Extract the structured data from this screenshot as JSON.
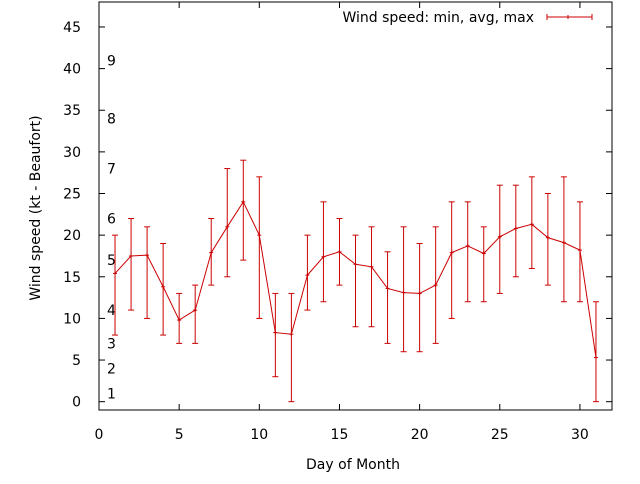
{
  "chart_data": {
    "type": "line",
    "xlabel": "Day of Month",
    "ylabel": "Wind speed (kt - Beaufort)",
    "xlim": [
      0,
      32
    ],
    "ylim": [
      -1,
      48
    ],
    "x_ticks": [
      0,
      5,
      10,
      15,
      20,
      25,
      30
    ],
    "y_ticks": [
      0,
      5,
      10,
      15,
      20,
      25,
      30,
      35,
      40,
      45
    ],
    "grid": false,
    "legend_position": "top-right",
    "beaufort_labels": [
      {
        "label": "1",
        "value": 1
      },
      {
        "label": "2",
        "value": 4
      },
      {
        "label": "3",
        "value": 7
      },
      {
        "label": "4",
        "value": 11
      },
      {
        "label": "5",
        "value": 17
      },
      {
        "label": "6",
        "value": 22
      },
      {
        "label": "7",
        "value": 28
      },
      {
        "label": "8",
        "value": 34
      },
      {
        "label": "9",
        "value": 41
      }
    ],
    "series": [
      {
        "name": "Wind speed: min, avg, max",
        "color": "#cc0000",
        "points": [
          {
            "x": 1,
            "min": 8,
            "avg": 15.4,
            "max": 20
          },
          {
            "x": 2,
            "min": 11,
            "avg": 17.5,
            "max": 22
          },
          {
            "x": 3,
            "min": 10,
            "avg": 17.6,
            "max": 21
          },
          {
            "x": 4,
            "min": 8,
            "avg": 13.8,
            "max": 19
          },
          {
            "x": 5,
            "min": 7,
            "avg": 9.8,
            "max": 13
          },
          {
            "x": 6,
            "min": 7,
            "avg": 11,
            "max": 14
          },
          {
            "x": 7,
            "min": 14,
            "avg": 17.9,
            "max": 22
          },
          {
            "x": 8,
            "min": 15,
            "avg": 21,
            "max": 28
          },
          {
            "x": 9,
            "min": 17,
            "avg": 24,
            "max": 29
          },
          {
            "x": 10,
            "min": 10,
            "avg": 20,
            "max": 27
          },
          {
            "x": 11,
            "min": 3,
            "avg": 8.3,
            "max": 13
          },
          {
            "x": 12,
            "min": 0,
            "avg": 8.1,
            "max": 13
          },
          {
            "x": 13,
            "min": 11,
            "avg": 15.2,
            "max": 20
          },
          {
            "x": 14,
            "min": 12,
            "avg": 17.4,
            "max": 24
          },
          {
            "x": 15,
            "min": 14,
            "avg": 18,
            "max": 22
          },
          {
            "x": 16,
            "min": 9,
            "avg": 16.5,
            "max": 20
          },
          {
            "x": 17,
            "min": 9,
            "avg": 16.2,
            "max": 21
          },
          {
            "x": 18,
            "min": 7,
            "avg": 13.6,
            "max": 18
          },
          {
            "x": 19,
            "min": 6,
            "avg": 13.1,
            "max": 21
          },
          {
            "x": 20,
            "min": 6,
            "avg": 13,
            "max": 19
          },
          {
            "x": 21,
            "min": 7,
            "avg": 14,
            "max": 21
          },
          {
            "x": 22,
            "min": 10,
            "avg": 17.9,
            "max": 24
          },
          {
            "x": 23,
            "min": 12,
            "avg": 18.7,
            "max": 24
          },
          {
            "x": 24,
            "min": 12,
            "avg": 17.8,
            "max": 21
          },
          {
            "x": 25,
            "min": 13,
            "avg": 19.8,
            "max": 26
          },
          {
            "x": 26,
            "min": 15,
            "avg": 20.8,
            "max": 26
          },
          {
            "x": 27,
            "min": 16,
            "avg": 21.3,
            "max": 27
          },
          {
            "x": 28,
            "min": 14,
            "avg": 19.7,
            "max": 25
          },
          {
            "x": 29,
            "min": 12,
            "avg": 19.1,
            "max": 27
          },
          {
            "x": 30,
            "min": 12,
            "avg": 18.2,
            "max": 24
          },
          {
            "x": 31,
            "min": 0,
            "avg": 5.3,
            "max": 12
          }
        ]
      }
    ]
  }
}
